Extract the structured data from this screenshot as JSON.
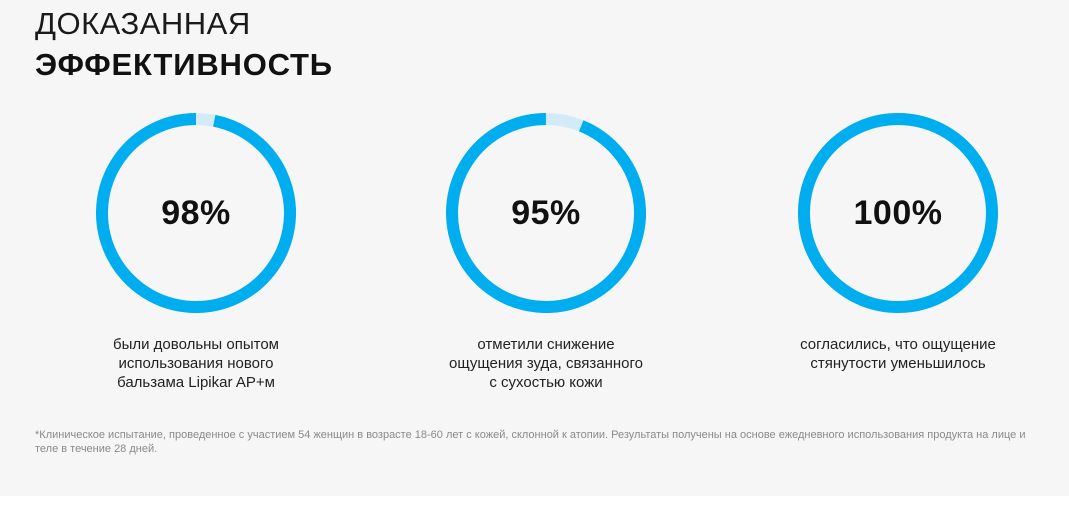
{
  "heading": {
    "line1": "ДОКАЗАННАЯ",
    "line2": "ЭФФЕКТИВНОСТЬ"
  },
  "colors": {
    "ring": "#00aeef",
    "ring_track": "#d3eaf8",
    "background": "#f6f6f6"
  },
  "stats": [
    {
      "percent_label": "98%",
      "value": 98,
      "caption": "были довольны опытом\nиспользования нового\nбальзама Lipikar AP+м"
    },
    {
      "percent_label": "95%",
      "value": 95,
      "caption": "отметили снижение\nощущения зуда, связанного\nс сухостью кожи"
    },
    {
      "percent_label": "100%",
      "value": 100,
      "caption": "согласились, что ощущение\nстянутости уменьшилось"
    }
  ],
  "footnote": "*Клиническое испытание, проведенное с участием 54 женщин в возрасте 18-60 лет с кожей, склонной к атопии. Результаты получены на основе ежедневного использования продукта на лице и теле в течение 28 дней."
}
